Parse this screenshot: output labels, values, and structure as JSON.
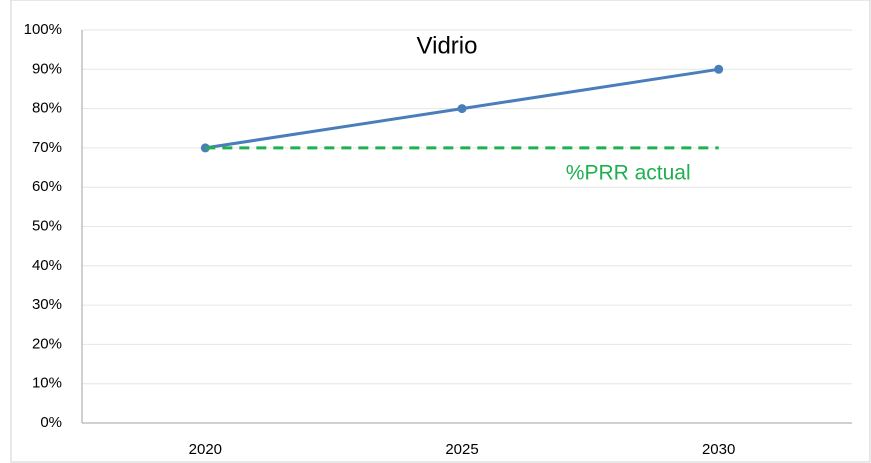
{
  "chart_data": {
    "type": "line",
    "title": "Vidrio",
    "categories": [
      "2020",
      "2025",
      "2030"
    ],
    "series": [
      {
        "name": "Vidrio",
        "color": "#4a7ebb",
        "values": [
          70,
          80,
          90
        ],
        "markers": true
      },
      {
        "name": "%PRR actual",
        "color": "#1fb050",
        "values": [
          70,
          70,
          70
        ],
        "dashed": true
      }
    ],
    "ylim": [
      0,
      100
    ],
    "yticks": [
      {
        "value": 0,
        "label": "0%"
      },
      {
        "value": 10,
        "label": "10%"
      },
      {
        "value": 20,
        "label": "20%"
      },
      {
        "value": 30,
        "label": "30%"
      },
      {
        "value": 40,
        "label": "40%"
      },
      {
        "value": 50,
        "label": "50%"
      },
      {
        "value": 60,
        "label": "60%"
      },
      {
        "value": 70,
        "label": "70%"
      },
      {
        "value": 80,
        "label": "80%"
      },
      {
        "value": 90,
        "label": "90%"
      },
      {
        "value": 100,
        "label": "100%"
      }
    ],
    "grid": true
  }
}
